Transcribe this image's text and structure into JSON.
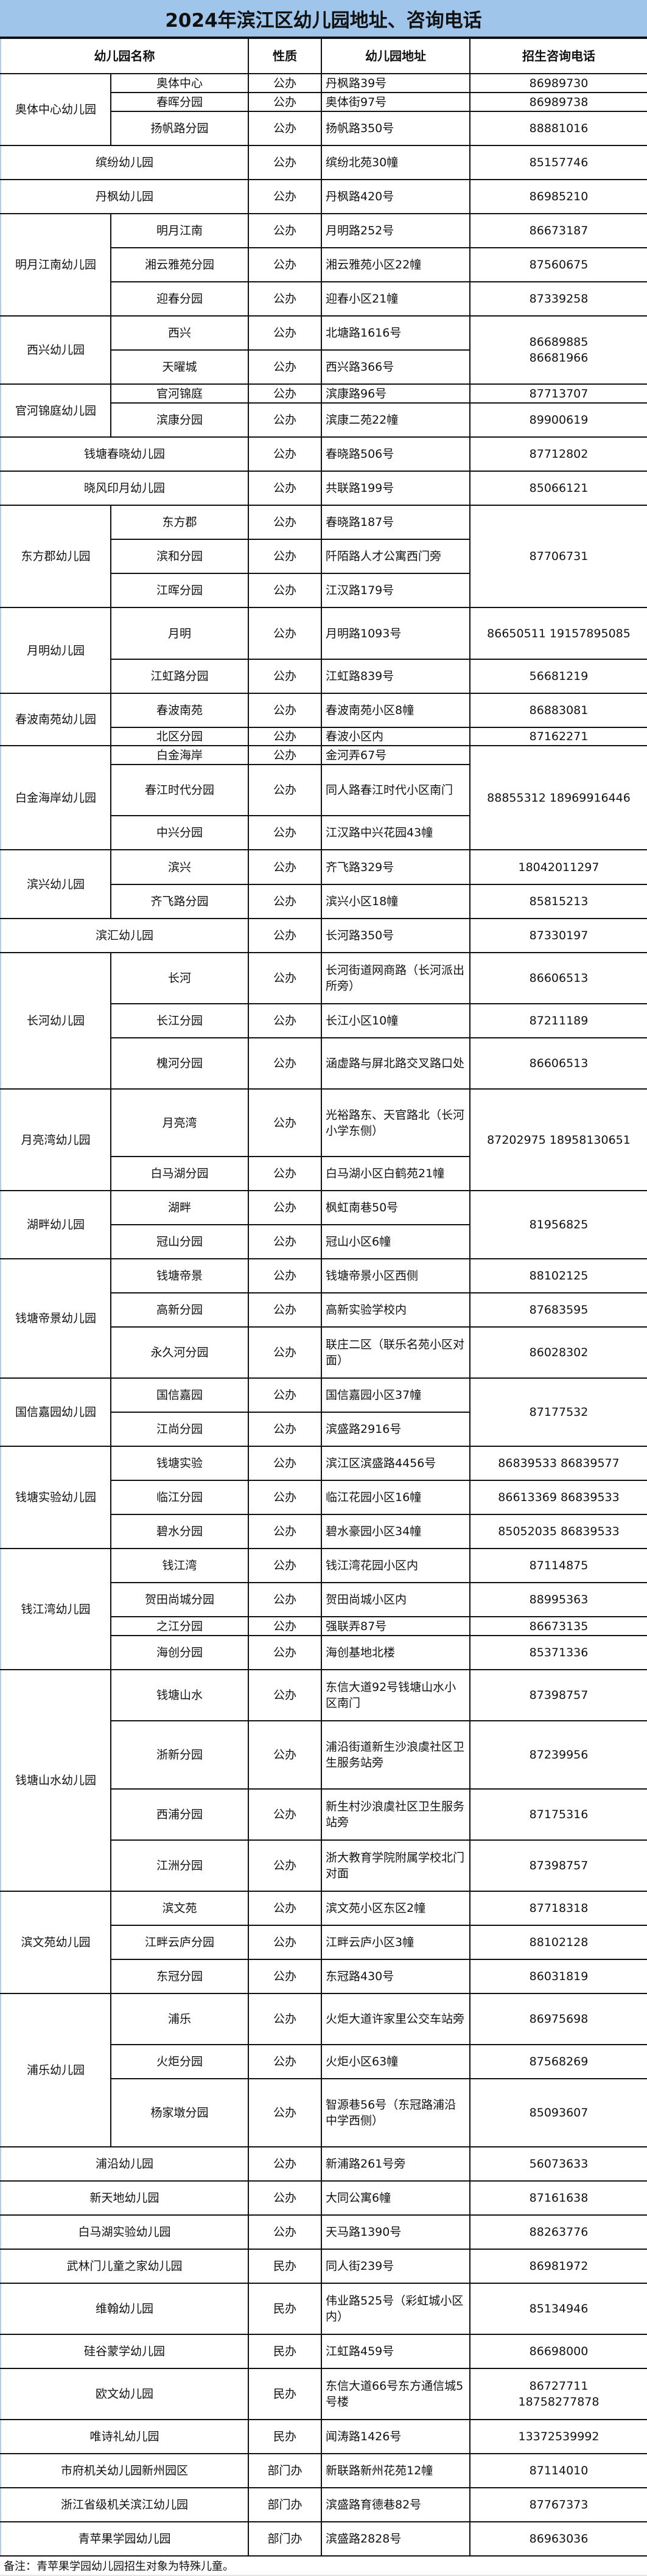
{
  "title": "2024年滨江区幼儿园地址、咨询电话",
  "headers": {
    "name": "幼儿园名称",
    "type": "性质",
    "address": "幼儿园地址",
    "phone": "招生咨询电话"
  },
  "rows": [
    {
      "name": "奥体中心幼儿园",
      "branches": [
        {
          "name": "奥体中心",
          "type": "公办",
          "address": "丹枫路39号",
          "phone": "86989730"
        },
        {
          "name": "春晖分园",
          "type": "公办",
          "address": "奥体街97号",
          "phone": "86989738"
        },
        {
          "name": "扬帆路分园",
          "type": "公办",
          "address": "扬帆路350号",
          "phone": "88881016"
        }
      ]
    },
    {
      "name": "缤纷幼儿园",
      "type": "公办",
      "address": "缤纷北苑30幢",
      "phone": "85157746"
    },
    {
      "name": "丹枫幼儿园",
      "type": "公办",
      "address": "丹枫路420号",
      "phone": "86985210"
    },
    {
      "name": "明月江南幼儿园",
      "branches": [
        {
          "name": "明月江南",
          "type": "公办",
          "address": "月明路252号",
          "phone": "86673187"
        },
        {
          "name": "湘云雅苑分园",
          "type": "公办",
          "address": "湘云雅苑小区22幢",
          "phone": "87560675"
        },
        {
          "name": "迎春分园",
          "type": "公办",
          "address": "迎春小区21幢",
          "phone": "87339258"
        }
      ]
    },
    {
      "name": "西兴幼儿园",
      "shared_phone": "86689885\n86681966",
      "branches": [
        {
          "name": "西兴",
          "type": "公办",
          "address": "北塘路1616号"
        },
        {
          "name": "天曜城",
          "type": "公办",
          "address": "西兴路366号"
        }
      ]
    },
    {
      "name": "官河锦庭幼儿园",
      "branches": [
        {
          "name": "官河锦庭",
          "type": "公办",
          "address": "滨康路96号",
          "phone": "87713707"
        },
        {
          "name": "滨康分园",
          "type": "公办",
          "address": "滨康二苑22幢",
          "phone": "89900619"
        }
      ]
    },
    {
      "name": "钱塘春晓幼儿园",
      "type": "公办",
      "address": "春晓路506号",
      "phone": "87712802"
    },
    {
      "name": "晓风印月幼儿园",
      "type": "公办",
      "address": "共联路199号",
      "phone": "85066121"
    },
    {
      "name": "东方郡幼儿园",
      "shared_phone": "87706731",
      "branches": [
        {
          "name": "东方郡",
          "type": "公办",
          "address": "春晓路187号"
        },
        {
          "name": "滨和分园",
          "type": "公办",
          "address": "阡陌路人才公寓西门旁"
        },
        {
          "name": "江晖分园",
          "type": "公办",
          "address": "江汉路179号"
        }
      ]
    },
    {
      "name": "月明幼儿园",
      "branches": [
        {
          "name": "月明",
          "type": "公办",
          "address": "月明路1093号",
          "phone": "86650511  19157895085"
        },
        {
          "name": "江虹路分园",
          "type": "公办",
          "address": "江虹路839号",
          "phone": "56681219"
        }
      ]
    },
    {
      "name": "春波南苑幼儿园",
      "branches": [
        {
          "name": "春波南苑",
          "type": "公办",
          "address": "春波南苑小区8幢",
          "phone": "86883081"
        },
        {
          "name": "北区分园",
          "type": "公办",
          "address": "春波小区内",
          "phone": "87162271"
        }
      ]
    },
    {
      "name": "白金海岸幼儿园",
      "shared_phone": "88855312  18969916446",
      "branches": [
        {
          "name": "白金海岸",
          "type": "公办",
          "address": "金河弄67号"
        },
        {
          "name": "春江时代分园",
          "type": "公办",
          "address": "同人路春江时代小区南门"
        },
        {
          "name": "中兴分园",
          "type": "公办",
          "address": "江汉路中兴花园43幢"
        }
      ]
    },
    {
      "name": "滨兴幼儿园",
      "branches": [
        {
          "name": "滨兴",
          "type": "公办",
          "address": "齐飞路329号",
          "phone": "18042011297"
        },
        {
          "name": "齐飞路分园",
          "type": "公办",
          "address": "滨兴小区18幢",
          "phone": "85815213"
        }
      ]
    },
    {
      "name": "滨汇幼儿园",
      "type": "公办",
      "address": "长河路350号",
      "phone": "87330197"
    },
    {
      "name": "长河幼儿园",
      "branches": [
        {
          "name": "长河",
          "type": "公办",
          "address": "长河街道网商路（长河派出所旁）",
          "phone": "86606513"
        },
        {
          "name": "长江分园",
          "type": "公办",
          "address": "长江小区10幢",
          "phone": "87211189"
        },
        {
          "name": "槐河分园",
          "type": "公办",
          "address": "涵虚路与屏北路交叉路口处",
          "phone": "86606513"
        }
      ]
    },
    {
      "name": "月亮湾幼儿园",
      "shared_phone": "87202975  18958130651",
      "branches": [
        {
          "name": "月亮湾",
          "type": "公办",
          "address": "光裕路东、天官路北（长河小学东侧）"
        },
        {
          "name": "白马湖分园",
          "type": "公办",
          "address": "白马湖小区白鹤苑21幢"
        }
      ]
    },
    {
      "name": "湖畔幼儿园",
      "shared_phone": "81956825",
      "branches": [
        {
          "name": "湖畔",
          "type": "公办",
          "address": "枫虹南巷50号"
        },
        {
          "name": "冠山分园",
          "type": "公办",
          "address": "冠山小区6幢"
        }
      ]
    },
    {
      "name": "钱塘帝景幼儿园",
      "branches": [
        {
          "name": "钱塘帝景",
          "type": "公办",
          "address": "钱塘帝景小区西侧",
          "phone": "88102125"
        },
        {
          "name": "高新分园",
          "type": "公办",
          "address": "高新实验学校内",
          "phone": "87683595"
        },
        {
          "name": "永久河分园",
          "type": "公办",
          "address": "联庄二区（联乐名苑小区对面）",
          "phone": "86028302"
        }
      ]
    },
    {
      "name": "国信嘉园幼儿园",
      "shared_phone": "87177532",
      "branches": [
        {
          "name": "国信嘉园",
          "type": "公办",
          "address": "国信嘉园小区37幢"
        },
        {
          "name": "江尚分园",
          "type": "公办",
          "address": "滨盛路2916号"
        }
      ]
    },
    {
      "name": "钱塘实验幼儿园",
      "branches": [
        {
          "name": "钱塘实验",
          "type": "公办",
          "address": "滨江区滨盛路4456号",
          "phone": "86839533    86839577"
        },
        {
          "name": "临江分园",
          "type": "公办",
          "address": "临江花园小区16幢",
          "phone": "86613369  86839533"
        },
        {
          "name": "碧水分园",
          "type": "公办",
          "address": "碧水豪园小区34幢",
          "phone": "85052035  86839533"
        }
      ]
    },
    {
      "name": "钱江湾幼儿园",
      "branches": [
        {
          "name": "钱江湾",
          "type": "公办",
          "address": "钱江湾花园小区内",
          "phone": "87114875"
        },
        {
          "name": "贺田尚城分园",
          "type": "公办",
          "address": "贺田尚城小区内",
          "phone": "88995363"
        },
        {
          "name": "之江分园",
          "type": "公办",
          "address": "强联弄87号",
          "phone": "86673135"
        },
        {
          "name": "海创分园",
          "type": "公办",
          "address": "海创基地北楼",
          "phone": "85371336"
        }
      ]
    },
    {
      "name": "钱塘山水幼儿园",
      "branches": [
        {
          "name": "钱塘山水",
          "type": "公办",
          "address": "东信大道92号钱塘山水小区南门",
          "phone": "87398757"
        },
        {
          "name": "浙新分园",
          "type": "公办",
          "address": "浦沿街道新生沙浪虞社区卫生服务站旁",
          "phone": "87239956"
        },
        {
          "name": "西浦分园",
          "type": "公办",
          "address": "新生村沙浪虞社区卫生服务站旁",
          "phone": "87175316"
        },
        {
          "name": "江洲分园",
          "type": "公办",
          "address": "浙大教育学院附属学校北门对面",
          "phone": "87398757"
        }
      ]
    },
    {
      "name": "滨文苑幼儿园",
      "branches": [
        {
          "name": "滨文苑",
          "type": "公办",
          "address": "滨文苑小区东区2幢",
          "phone": "87718318"
        },
        {
          "name": "江畔云庐分园",
          "type": "公办",
          "address": "江畔云庐小区3幢",
          "phone": "88102128"
        },
        {
          "name": "东冠分园",
          "type": "公办",
          "address": "东冠路430号",
          "phone": "86031819"
        }
      ]
    },
    {
      "name": "浦乐幼儿园",
      "branches": [
        {
          "name": "浦乐",
          "type": "公办",
          "address": "火炬大道许家里公交车站旁",
          "phone": "86975698"
        },
        {
          "name": "火炬分园",
          "type": "公办",
          "address": "火炬小区63幢",
          "phone": "87568269"
        },
        {
          "name": "杨家墩分园",
          "type": "公办",
          "address": "智源巷56号（东冠路浦沿中学西侧）",
          "phone": "85093607"
        }
      ]
    },
    {
      "name": "浦沿幼儿园",
      "type": "公办",
      "address": "新浦路261号旁",
      "phone": "56073633"
    },
    {
      "name": "新天地幼儿园",
      "type": "公办",
      "address": "大同公寓6幢",
      "phone": "87161638"
    },
    {
      "name": "白马湖实验幼儿园",
      "type": "公办",
      "address": "天马路1390号",
      "phone": "88263776"
    },
    {
      "name": "武林门儿童之家幼儿园",
      "type": "民办",
      "address": "同人街239号",
      "phone": "86981972"
    },
    {
      "name": "维翰幼儿园",
      "type": "民办",
      "address": "伟业路525号（彩虹城小区内）",
      "phone": "85134946"
    },
    {
      "name": "硅谷蒙学幼儿园",
      "type": "民办",
      "address": "江虹路459号",
      "phone": "86698000"
    },
    {
      "name": "欧文幼儿园",
      "type": "民办",
      "address": "东信大道66号东方通信城5号楼",
      "phone": "86727711\n18758277878"
    },
    {
      "name": "唯诗礼幼儿园",
      "type": "民办",
      "address": "闻涛路1426号",
      "phone": "13372539992"
    },
    {
      "name": "市府机关幼儿园新州园区",
      "type": "部门办",
      "address": "新联路新州花苑12幢",
      "phone": "87114010"
    },
    {
      "name": "浙江省级机关滨江幼儿园",
      "type": "部门办",
      "address": "滨盛路育德巷82号",
      "phone": "87767373"
    },
    {
      "name": "青苹果学园幼儿园",
      "type": "部门办",
      "address": "滨盛路2828号",
      "phone": "86963036"
    }
  ],
  "note": "备注：青苹果学园幼儿园招生对象为特殊儿童。"
}
